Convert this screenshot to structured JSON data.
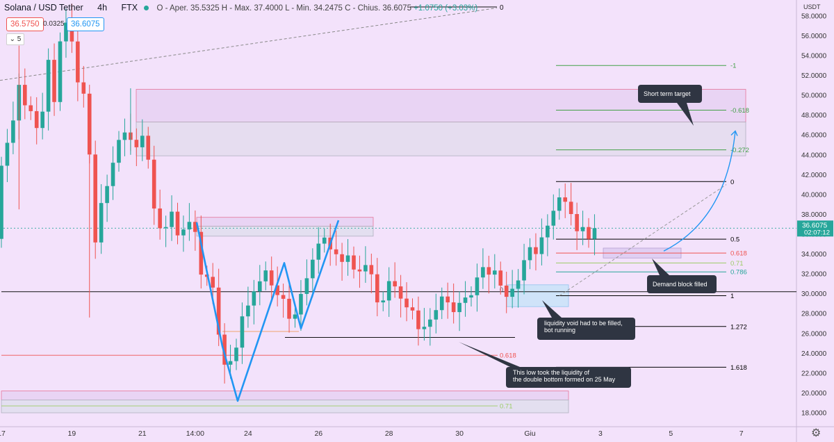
{
  "header": {
    "title": "Solana / USD Tether",
    "interval": "4h",
    "exchange": "FTX",
    "ohlc": "O - Aper. 35.5325  H - Max. 37.4000  L - Min. 34.2475  C - Chius. 36.6075",
    "change": "+1.0750 (+3.03%)",
    "sell_price": "36.5750",
    "spread": "0.0325",
    "buy_price": "36.6075",
    "indicator_toggle": "5"
  },
  "settings_icon": "gear-icon",
  "chart_data": {
    "type": "candlestick",
    "symbol": "Solana / USD Tether",
    "interval": "4h",
    "exchange": "FTX",
    "currency": "USDT",
    "ylim": [
      16.6,
      59.6
    ],
    "y_ticks": [
      "58.0000",
      "56.0000",
      "54.0000",
      "52.0000",
      "50.0000",
      "48.0000",
      "46.0000",
      "44.0000",
      "42.0000",
      "40.0000",
      "38.0000",
      "36.0000",
      "34.0000",
      "32.0000",
      "30.0000",
      "28.0000",
      "26.0000",
      "24.0000",
      "22.0000",
      "20.0000",
      "18.0000"
    ],
    "x_ticks": [
      {
        "label": "17",
        "i": 0
      },
      {
        "label": "19",
        "i": 12
      },
      {
        "label": "21",
        "i": 24
      },
      {
        "label": "14:00",
        "i": 33
      },
      {
        "label": "24",
        "i": 42
      },
      {
        "label": "26",
        "i": 54
      },
      {
        "label": "28",
        "i": 66
      },
      {
        "label": "30",
        "i": 78
      },
      {
        "label": "Giu",
        "i": 90
      },
      {
        "label": "3",
        "i": 102
      },
      {
        "label": "5",
        "i": 114
      },
      {
        "label": "7",
        "i": 126
      }
    ],
    "last_price": {
      "value": 36.6075,
      "label": "36.6075",
      "countdown": "02:07:12"
    },
    "candles": [
      [
        null,
        35.53,
        38.6,
        42.9
      ],
      [
        null,
        42.9,
        43.2,
        45.21
      ],
      [
        null,
        45.21,
        44.2,
        47.46
      ],
      [
        null,
        47.46,
        46.8,
        51.05
      ],
      [
        null,
        51.05,
        49.8,
        48.99
      ],
      [
        null,
        48.99,
        50.8,
        48.4
      ],
      [
        null,
        48.4,
        49.5,
        46.7
      ],
      [
        null,
        46.7,
        47.4,
        48.35
      ],
      [
        null,
        48.35,
        50.4,
        53.57
      ],
      [
        null,
        53.57,
        50.3,
        49.32
      ],
      [
        null,
        49.32,
        53.2,
        55.43
      ],
      [
        null,
        55.43,
        52.7,
        57.32
      ],
      [
        null,
        57.32,
        55.1,
        55.42
      ],
      [
        null,
        55.42,
        53.2,
        51.3
      ],
      [
        null,
        51.3,
        50.5,
        50.16
      ],
      [
        null,
        50.16,
        47.1,
        44.03
      ],
      [
        null,
        44.03,
        41.4,
        35.17
      ],
      [
        null,
        35.17,
        39.0,
        39.14
      ],
      [
        null,
        39.14,
        41.8,
        40.85
      ],
      [
        null,
        40.85,
        39.6,
        43.2
      ],
      [
        null,
        43.2,
        43.3,
        45.5
      ],
      [
        null,
        45.5,
        44.6,
        46.25
      ],
      [
        null,
        46.25,
        45.8,
        45.51
      ],
      [
        null,
        45.51,
        45.2,
        44.76
      ],
      [
        null,
        44.76,
        45.4,
        45.92
      ],
      [
        null,
        45.92,
        44.0,
        43.51
      ],
      [
        null,
        43.51,
        42.1,
        38.59
      ],
      [
        null,
        38.59,
        37.2,
        36.6
      ],
      [
        null,
        36.6,
        37.1,
        36.72
      ],
      [
        null,
        36.72,
        37.8,
        38.27
      ],
      [
        null,
        38.27,
        38.2,
        35.88
      ],
      [
        null,
        35.88,
        36.5,
        36.48
      ],
      [
        null,
        36.48,
        36.9,
        37.24
      ],
      [
        null,
        37.24,
        36.6,
        36.23
      ],
      [
        null,
        36.23,
        35.0,
        31.93
      ],
      [
        null,
        31.93,
        31.5,
        31.7
      ],
      [
        null,
        31.7,
        30.6,
        30.62
      ],
      [
        null,
        30.62,
        29.1,
        25.88
      ],
      [
        null,
        25.88,
        26.2,
        22.85
      ],
      [
        null,
        22.85,
        24.0,
        23.21
      ],
      [
        null,
        23.21,
        24.5,
        24.57
      ],
      [
        null,
        24.57,
        26.0,
        27.72
      ],
      [
        null,
        27.72,
        28.4,
        28.81
      ],
      [
        null,
        28.81,
        30.1,
        30.24
      ],
      [
        null,
        30.24,
        30.8,
        31.25
      ],
      [
        null,
        31.25,
        31.9,
        32.35
      ],
      [
        null,
        32.35,
        31.6,
        30.84
      ],
      [
        null,
        30.84,
        30.3,
        29.87
      ],
      [
        null,
        29.87,
        29.4,
        29.49
      ],
      [
        null,
        29.49,
        28.5,
        27.48
      ],
      [
        null,
        27.48,
        27.8,
        27.91
      ],
      [
        null,
        27.91,
        29.2,
        29.98
      ],
      [
        null,
        29.98,
        30.6,
        31.56
      ],
      [
        null,
        31.56,
        32.8,
        33.43
      ],
      [
        null,
        33.43,
        35.0,
        35.05
      ],
      [
        null,
        35.05,
        35.5,
        35.66
      ],
      [
        null,
        35.66,
        35.0,
        34.47
      ],
      [
        null,
        34.47,
        34.2,
        33.98
      ],
      [
        null,
        33.98,
        33.6,
        33.21
      ],
      [
        null,
        33.21,
        33.6,
        33.86
      ],
      [
        null,
        33.86,
        33.0,
        32.44
      ],
      [
        null,
        32.44,
        32.2,
        32.25
      ],
      [
        null,
        32.25,
        32.6,
        32.89
      ],
      [
        null,
        32.89,
        32.3,
        31.96
      ],
      [
        null,
        31.96,
        30.4,
        29.13
      ],
      [
        null,
        29.13,
        29.2,
        29.32
      ],
      [
        null,
        29.32,
        30.3,
        31.27
      ],
      [
        null,
        31.27,
        30.8,
        30.74
      ],
      [
        null,
        30.74,
        30.0,
        29.51
      ],
      [
        null,
        29.51,
        28.5,
        28.63
      ],
      [
        null,
        28.63,
        28.3,
        28.31
      ],
      [
        null,
        28.31,
        27.3,
        26.43
      ],
      [
        null,
        26.43,
        26.9,
        26.67
      ],
      [
        null,
        26.67,
        27.1,
        27.4
      ],
      [
        null,
        27.4,
        28.3,
        28.35
      ],
      [
        null,
        28.35,
        29.1,
        29.72
      ],
      [
        null,
        29.72,
        29.3,
        29.13
      ],
      [
        null,
        29.13,
        28.6,
        28.15
      ],
      [
        null,
        28.15,
        28.9,
        29.08
      ],
      [
        null,
        29.08,
        29.4,
        29.62
      ],
      [
        null,
        29.62,
        30.0,
        29.85
      ],
      [
        null,
        29.85,
        31.0,
        31.64
      ],
      [
        null,
        31.64,
        32.3,
        32.68
      ],
      [
        null,
        32.68,
        31.9,
        31.93
      ],
      [
        null,
        31.93,
        32.5,
        32.34
      ],
      [
        null,
        32.34,
        31.6,
        30.82
      ],
      [
        null,
        30.82,
        29.9,
        29.69
      ],
      [
        null,
        29.69,
        30.2,
        30.5
      ],
      [
        null,
        30.5,
        30.8,
        31.34
      ],
      [
        null,
        31.34,
        32.2,
        33.38
      ],
      [
        null,
        33.38,
        34.4,
        34.69
      ],
      [
        null,
        34.69,
        34.3,
        34.0
      ],
      [
        null,
        34.0,
        34.6,
        35.68
      ],
      [
        null,
        35.68,
        36.5,
        36.86
      ],
      [
        null,
        36.86,
        37.2,
        38.36
      ],
      [
        null,
        38.36,
        39.2,
        39.71
      ],
      [
        null,
        39.71,
        39.0,
        39.27
      ],
      [
        null,
        39.27,
        38.8,
        38.03
      ],
      [
        null,
        38.03,
        37.8,
        36.3
      ],
      [
        null,
        36.3,
        36.7,
        36.72
      ],
      [
        null,
        36.72,
        35.6,
        35.53
      ],
      [
        null,
        35.53,
        36.1,
        36.61
      ]
    ],
    "zones": [
      {
        "name": "upper-target-zone",
        "y1": 50.6,
        "y2": 47.3,
        "color": "#e9d4f4",
        "border": "#e57399"
      },
      {
        "name": "upper-gap-zone",
        "y1": 47.3,
        "y2": 43.9,
        "color": "#e6ddf0",
        "border": "#b0b0c0"
      },
      {
        "name": "mid-resistance-zone",
        "y1": 37.7,
        "y2": 36.8,
        "color": "#e9d4f4",
        "border": "#e57399"
      },
      {
        "name": "mid-gap-zone",
        "y1": 36.8,
        "y2": 35.8,
        "color": "#e3dff0",
        "border": "#b0b0c0"
      },
      {
        "name": "low-support-zone",
        "y1": 20.2,
        "y2": 19.3,
        "color": "#e9d4f4",
        "border": "#e57399"
      },
      {
        "name": "low-gap-zone",
        "y1": 19.3,
        "y2": 18.0,
        "color": "#e3dff0",
        "border": "#b0b0c0"
      },
      {
        "name": "demand-block",
        "y1": 34.6,
        "y2": 33.6,
        "color": "#e0cff3",
        "border": "#b4a0d0"
      },
      {
        "name": "liquidity-void-box",
        "y1": 30.9,
        "y2": 28.7,
        "color": "#cfe3f9",
        "border": "#90c4ee"
      }
    ],
    "fib_levels": [
      {
        "label": "-1",
        "value": 53.0,
        "color": "#43a047"
      },
      {
        "label": "-0.618",
        "value": 48.5,
        "color": "#43a047"
      },
      {
        "label": "-0.272",
        "value": 44.5,
        "color": "#43a047"
      },
      {
        "label": "0",
        "value": 41.3,
        "color": "#000000"
      },
      {
        "label": "0.5",
        "value": 35.5,
        "color": "#000000"
      },
      {
        "label": "0.618",
        "value": 34.1,
        "color": "#ef5350"
      },
      {
        "label": "0.71",
        "value": 33.1,
        "color": "#9ccc65"
      },
      {
        "label": "0.786",
        "value": 32.2,
        "color": "#26a69a"
      },
      {
        "label": "1",
        "value": 29.8,
        "color": "#000000"
      },
      {
        "label": "1.272",
        "value": 26.7,
        "color": "#000000"
      },
      {
        "label": "1.618",
        "value": 22.6,
        "color": "#000000"
      }
    ],
    "lower_fib": [
      {
        "label": "0.618",
        "value": 23.8,
        "color": "#ef5350"
      },
      {
        "label": "0.71",
        "value": 18.7,
        "color": "#9ccc65"
      }
    ],
    "upper_trend_label": "0",
    "small_labels": [
      "0.5",
      "1"
    ],
    "annotations": [
      {
        "text": "Short term target"
      },
      {
        "text": "Demand block filled"
      },
      {
        "text": "liquidity void had to be filled,\nbot running"
      },
      {
        "text": "This low took the liquidity of\nthe double bottom formed on 25 May"
      }
    ]
  }
}
